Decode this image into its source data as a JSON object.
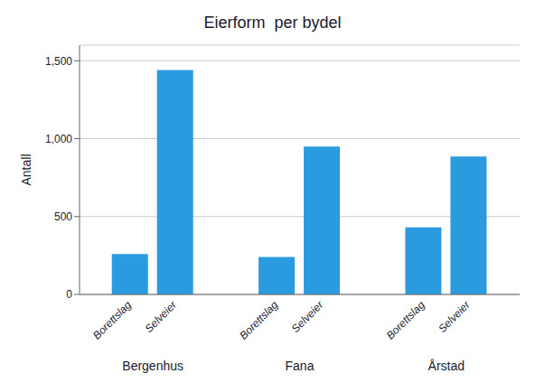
{
  "chart_data": {
    "type": "bar",
    "title": "Eierform  per bydel",
    "y_label": "Antall",
    "categories": [
      "Bergenhus",
      "Fana",
      "Årstad"
    ],
    "series": [
      {
        "name": "Borettslag",
        "color": "#2b9be0",
        "values": [
          260,
          240,
          430
        ]
      },
      {
        "name": "Selveier",
        "color": "#2b9be0",
        "values": [
          1440,
          950,
          885
        ]
      }
    ],
    "ylim": [
      0,
      1600
    ],
    "yticks": [
      0,
      500,
      {
        "value": 1000,
        "label": "1,000"
      },
      {
        "value": 1500,
        "label": "1,500"
      }
    ],
    "grid": true
  }
}
